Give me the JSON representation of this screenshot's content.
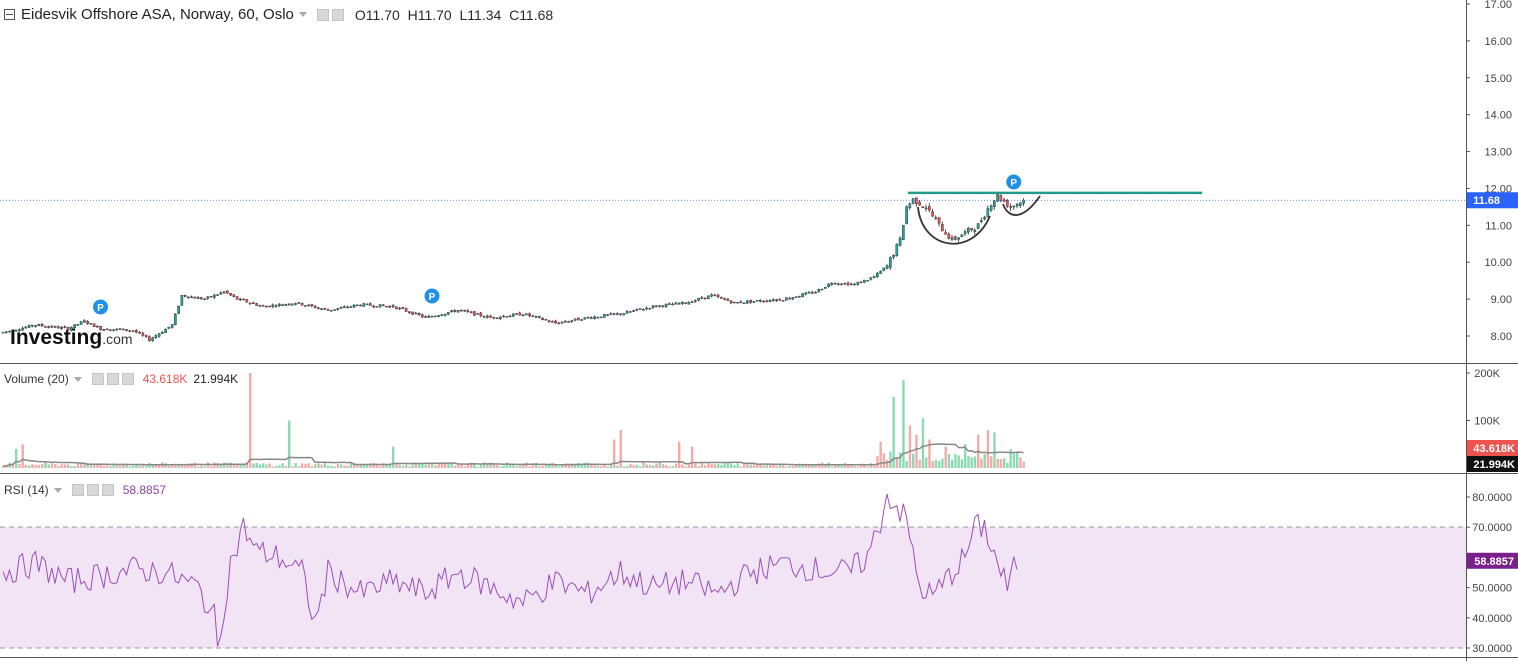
{
  "header": {
    "title": "Eidesvik Offshore ASA, Norway, 60, Oslo",
    "open_label": "O",
    "open": "11.70",
    "high_label": "H",
    "high": "11.70",
    "low_label": "L",
    "low": "11.34",
    "close_label": "C",
    "close": "11.68"
  },
  "volume_pane": {
    "label": "Volume (20)",
    "value1": "43.618K",
    "value2": "21.994K"
  },
  "rsi_pane": {
    "label": "RSI (14)",
    "value": "58.8857"
  },
  "watermark": {
    "brand": "Investing",
    "suffix": ".com"
  },
  "event_marker_label": "P",
  "colors": {
    "up": "#26a69a",
    "down": "#ef5350",
    "rsi_line": "#9c4fb8",
    "rsi_band": "#f1e4f4",
    "resistance": "#229a85",
    "last_price_tag": "#2962ff"
  },
  "chart_data": [
    {
      "type": "candlestick",
      "title": "Eidesvik Offshore ASA, Norway, 60, Oslo",
      "ylim": [
        7.5,
        17.1
      ],
      "yticks": [
        "8.00",
        "9.00",
        "10.00",
        "11.00",
        "12.00",
        "13.00",
        "14.00",
        "15.00",
        "16.00",
        "17.00"
      ],
      "last_price": "11.68",
      "resistance_level": 11.88,
      "anchors": [
        [
          0,
          8.1
        ],
        [
          10,
          8.3
        ],
        [
          20,
          8.2
        ],
        [
          25,
          8.4
        ],
        [
          30,
          8.2
        ],
        [
          40,
          8.15
        ],
        [
          45,
          7.9
        ],
        [
          52,
          8.3
        ],
        [
          55,
          9.1
        ],
        [
          62,
          9.0
        ],
        [
          68,
          9.2
        ],
        [
          72,
          9.0
        ],
        [
          80,
          8.8
        ],
        [
          90,
          8.9
        ],
        [
          100,
          8.7
        ],
        [
          110,
          8.85
        ],
        [
          120,
          8.8
        ],
        [
          130,
          8.5
        ],
        [
          140,
          8.7
        ],
        [
          150,
          8.5
        ],
        [
          160,
          8.6
        ],
        [
          170,
          8.35
        ],
        [
          180,
          8.5
        ],
        [
          190,
          8.6
        ],
        [
          200,
          8.8
        ],
        [
          210,
          8.9
        ],
        [
          218,
          9.1
        ],
        [
          225,
          8.9
        ],
        [
          232,
          8.95
        ],
        [
          240,
          9.0
        ],
        [
          250,
          9.2
        ],
        [
          255,
          9.45
        ],
        [
          262,
          9.4
        ],
        [
          268,
          9.6
        ],
        [
          272,
          9.9
        ],
        [
          276,
          10.6
        ],
        [
          278,
          11.5
        ],
        [
          280,
          11.7
        ],
        [
          284,
          11.5
        ],
        [
          288,
          11.0
        ],
        [
          292,
          10.6
        ],
        [
          296,
          10.8
        ],
        [
          300,
          11.0
        ],
        [
          304,
          11.6
        ],
        [
          306,
          11.8
        ],
        [
          310,
          11.5
        ],
        [
          314,
          11.68
        ]
      ],
      "event_markers": [
        30,
        132,
        311
      ],
      "annotations": [
        "horizontal resistance line",
        "cup and handle pattern"
      ]
    },
    {
      "type": "bar",
      "name": "Volume (20)",
      "ylim": [
        0,
        210000
      ],
      "yticks": [
        "100K",
        "200K"
      ],
      "series": [
        {
          "name": "volume_spikes",
          "x": [
            4,
            6,
            76,
            88,
            120,
            188,
            190,
            208,
            212,
            270,
            274,
            277,
            279,
            281,
            283,
            285,
            290,
            296,
            300,
            303,
            305,
            310
          ],
          "values": [
            40000,
            50000,
            200000,
            100000,
            45000,
            60000,
            80000,
            55000,
            45000,
            55000,
            150000,
            185000,
            90000,
            70000,
            105000,
            60000,
            45000,
            50000,
            70000,
            80000,
            75000,
            40000
          ]
        }
      ],
      "last_values": [
        "43.618K",
        "21.994K"
      ]
    },
    {
      "type": "line",
      "name": "RSI (14)",
      "ylim": [
        30,
        80
      ],
      "yticks": [
        "30.0000",
        "40.0000",
        "50.0000",
        "60.0000",
        "70.0000",
        "80.0000"
      ],
      "band": [
        30,
        70
      ],
      "anchors": [
        [
          0,
          55
        ],
        [
          10,
          58
        ],
        [
          20,
          52
        ],
        [
          30,
          54
        ],
        [
          40,
          56
        ],
        [
          50,
          55
        ],
        [
          60,
          50
        ],
        [
          65,
          40
        ],
        [
          66,
          30
        ],
        [
          70,
          58
        ],
        [
          74,
          70
        ],
        [
          78,
          62
        ],
        [
          85,
          60
        ],
        [
          92,
          55
        ],
        [
          96,
          38
        ],
        [
          100,
          55
        ],
        [
          110,
          48
        ],
        [
          120,
          52
        ],
        [
          130,
          48
        ],
        [
          140,
          55
        ],
        [
          150,
          50
        ],
        [
          160,
          45
        ],
        [
          170,
          52
        ],
        [
          180,
          48
        ],
        [
          190,
          55
        ],
        [
          200,
          50
        ],
        [
          210,
          52
        ],
        [
          220,
          48
        ],
        [
          230,
          55
        ],
        [
          240,
          58
        ],
        [
          250,
          56
        ],
        [
          260,
          55
        ],
        [
          266,
          60
        ],
        [
          270,
          72
        ],
        [
          272,
          81
        ],
        [
          275,
          77
        ],
        [
          278,
          72
        ],
        [
          282,
          50
        ],
        [
          286,
          47
        ],
        [
          292,
          55
        ],
        [
          296,
          60
        ],
        [
          299,
          70
        ],
        [
          302,
          70
        ],
        [
          306,
          58
        ],
        [
          309,
          50
        ],
        [
          312,
          58.9
        ]
      ],
      "last_value": "58.8857"
    }
  ]
}
